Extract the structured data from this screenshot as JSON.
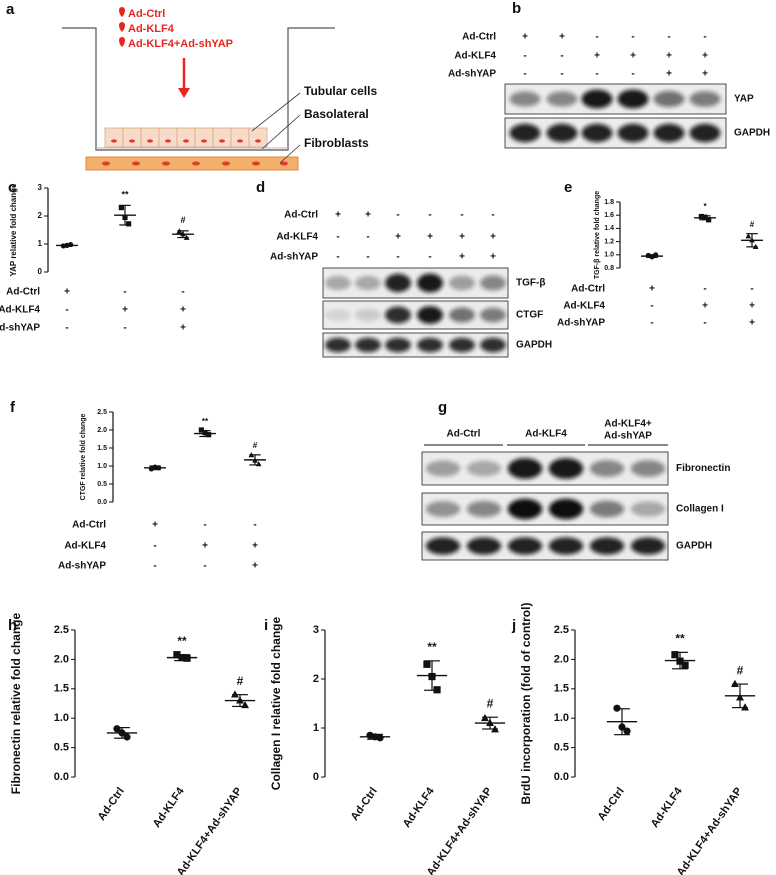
{
  "panel_a": {
    "letter": "a",
    "treatments": [
      "Ad-Ctrl",
      "Ad-KLF4",
      "Ad-KLF4+Ad-shYAP"
    ],
    "labels": [
      "Tubular cells",
      "Basolateral",
      "Fibroblasts"
    ]
  },
  "panel_b": {
    "letter": "b",
    "conditions": [
      {
        "name": "Ad-Ctrl",
        "signs": [
          "+",
          "+",
          "-",
          "-",
          "-",
          "-"
        ]
      },
      {
        "name": "Ad-KLF4",
        "signs": [
          "-",
          "-",
          "+",
          "+",
          "+",
          "+"
        ]
      },
      {
        "name": "Ad-shYAP",
        "signs": [
          "-",
          "-",
          "-",
          "-",
          "+",
          "+"
        ]
      }
    ],
    "bands": [
      "YAP",
      "GAPDH"
    ]
  },
  "panel_d": {
    "letter": "d",
    "conditions": [
      {
        "name": "Ad-Ctrl",
        "signs": [
          "+",
          "+",
          "-",
          "-",
          "-",
          "-"
        ]
      },
      {
        "name": "Ad-KLF4",
        "signs": [
          "-",
          "-",
          "+",
          "+",
          "+",
          "+"
        ]
      },
      {
        "name": "Ad-shYAP",
        "signs": [
          "-",
          "-",
          "-",
          "-",
          "+",
          "+"
        ]
      }
    ],
    "bands": [
      "TGF-β",
      "CTGF",
      "GAPDH"
    ]
  },
  "panel_g": {
    "letter": "g",
    "groups": [
      [
        "Ad-Ctrl"
      ],
      [
        "Ad-KLF4"
      ],
      [
        "Ad-KLF4+",
        "Ad-shYAP"
      ]
    ],
    "bands": [
      "Fibronectin",
      "Collagen I",
      "GAPDH"
    ]
  },
  "chart_data": [
    {
      "type": "scatter",
      "letter": "c",
      "ylabel": "YAP relative fold change",
      "ylim": [
        0,
        3
      ],
      "yticks": [
        0,
        1,
        2,
        3
      ],
      "points": [
        [
          0.93,
          0.95,
          0.98
        ],
        [
          2.3,
          1.95,
          1.72
        ],
        [
          1.45,
          1.35,
          1.22
        ]
      ],
      "means": [
        0.95,
        2.03,
        1.35
      ],
      "sd": [
        0.03,
        0.35,
        0.12
      ],
      "annotations": [
        null,
        "**",
        "#"
      ],
      "markers": [
        "circle",
        "square",
        "triangle"
      ],
      "conditions": [
        {
          "name": "Ad-Ctrl",
          "signs": [
            "+",
            "-",
            "-"
          ]
        },
        {
          "name": "Ad-KLF4",
          "signs": [
            "-",
            "+",
            "+"
          ]
        },
        {
          "name": "Ad-shYAP",
          "signs": [
            "-",
            "-",
            "+"
          ]
        }
      ]
    },
    {
      "type": "scatter",
      "letter": "e",
      "ylabel": "TGF-β relative fold change",
      "ylim": [
        0.8,
        1.8
      ],
      "yticks": [
        0.8,
        {
          "value": 1.0,
          "label": "1.0"
        },
        1.2,
        1.4,
        1.6,
        1.8
      ],
      "points": [
        [
          0.99,
          0.97,
          1.0
        ],
        [
          1.58,
          1.57,
          1.53
        ],
        [
          1.28,
          1.22,
          1.12
        ]
      ],
      "means": [
        0.98,
        1.56,
        1.22
      ],
      "sd": [
        0.02,
        0.03,
        0.1
      ],
      "annotations": [
        null,
        "*",
        "#"
      ],
      "markers": [
        "circle",
        "square",
        "triangle"
      ],
      "conditions": [
        {
          "name": "Ad-Ctrl",
          "signs": [
            "+",
            "-",
            "-"
          ]
        },
        {
          "name": "Ad-KLF4",
          "signs": [
            "-",
            "+",
            "+"
          ]
        },
        {
          "name": "Ad-shYAP",
          "signs": [
            "-",
            "-",
            "+"
          ]
        }
      ]
    },
    {
      "type": "scatter",
      "letter": "f",
      "ylabel": "CTGF relative fold change",
      "ylim": [
        0,
        2.5
      ],
      "yticks": [
        {
          "value": 0,
          "label": "0.0"
        },
        0.5,
        {
          "value": 1,
          "label": "1.0"
        },
        1.5,
        {
          "value": 2,
          "label": "2.0"
        },
        2.5
      ],
      "points": [
        [
          0.92,
          0.97,
          0.95
        ],
        [
          2.0,
          1.93,
          1.87
        ],
        [
          1.3,
          1.15,
          1.05
        ]
      ],
      "means": [
        0.95,
        1.9,
        1.17
      ],
      "sd": [
        0.05,
        0.08,
        0.14
      ],
      "annotations": [
        null,
        "**",
        "#"
      ],
      "markers": [
        "circle",
        "square",
        "triangle"
      ],
      "conditions": [
        {
          "name": "Ad-Ctrl",
          "signs": [
            "+",
            "-",
            "-"
          ]
        },
        {
          "name": "Ad-KLF4",
          "signs": [
            "-",
            "+",
            "+"
          ]
        },
        {
          "name": "Ad-shYAP",
          "signs": [
            "-",
            "-",
            "+"
          ]
        }
      ]
    },
    {
      "type": "scatter",
      "letter": "h",
      "ylabel": "Fibronectin relative fold change",
      "ylim": [
        0,
        2.5
      ],
      "yticks": [
        {
          "value": 0,
          "label": "0.0"
        },
        0.5,
        {
          "value": 1,
          "label": "1.0"
        },
        1.5,
        {
          "value": 2,
          "label": "2.0"
        },
        2.5
      ],
      "points": [
        [
          0.82,
          0.75,
          0.68
        ],
        [
          2.08,
          2.03,
          2.02
        ],
        [
          1.4,
          1.3,
          1.22
        ]
      ],
      "means": [
        0.75,
        2.03,
        1.3
      ],
      "sd": [
        0.09,
        0.05,
        0.1
      ],
      "annotations": [
        null,
        "**",
        "#"
      ],
      "markers": [
        "circle",
        "square",
        "triangle"
      ],
      "categories": [
        "Ad-Ctrl",
        "Ad-KLF4",
        "Ad-KLF4+Ad-shYAP"
      ]
    },
    {
      "type": "scatter",
      "letter": "i",
      "ylabel": "Collagen I relative fold change",
      "ylim": [
        0,
        3
      ],
      "yticks": [
        0,
        1,
        2,
        3
      ],
      "points": [
        [
          0.85,
          0.82,
          0.8
        ],
        [
          2.3,
          2.05,
          1.78
        ],
        [
          1.2,
          1.1,
          0.97
        ]
      ],
      "means": [
        0.82,
        2.07,
        1.1
      ],
      "sd": [
        0.05,
        0.3,
        0.12
      ],
      "annotations": [
        null,
        "**",
        "#"
      ],
      "markers": [
        "circle",
        "square",
        "triangle"
      ],
      "categories": [
        "Ad-Ctrl",
        "Ad-KLF4",
        "Ad-KLF4+Ad-shYAP"
      ]
    },
    {
      "type": "scatter",
      "letter": "j",
      "ylabel": "BrdU incorporation (fold of control)",
      "ylim": [
        0,
        2.5
      ],
      "yticks": [
        {
          "value": 0,
          "label": "0.0"
        },
        0.5,
        {
          "value": 1,
          "label": "1.0"
        },
        1.5,
        {
          "value": 2,
          "label": "2.0"
        },
        2.5
      ],
      "points": [
        [
          1.17,
          0.85,
          0.78
        ],
        [
          2.08,
          1.97,
          1.9
        ],
        [
          1.58,
          1.35,
          1.18
        ]
      ],
      "means": [
        0.94,
        1.98,
        1.38
      ],
      "sd": [
        0.22,
        0.14,
        0.2
      ],
      "annotations": [
        null,
        "**",
        "#"
      ],
      "markers": [
        "circle",
        "square",
        "triangle"
      ],
      "categories": [
        "Ad-Ctrl",
        "Ad-KLF4",
        "Ad-KLF4+Ad-shYAP"
      ]
    }
  ]
}
